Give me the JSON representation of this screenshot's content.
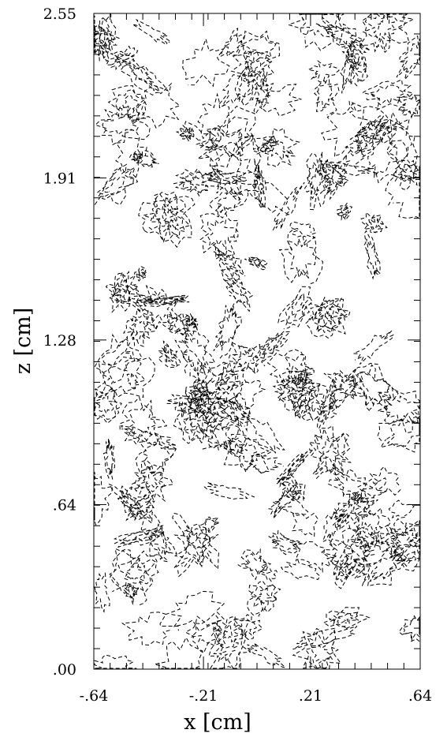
{
  "chart_data": {
    "type": "contour",
    "title": "",
    "xlabel": "x [cm]",
    "ylabel": "z [cm]",
    "xlim": [
      -0.64,
      0.64
    ],
    "ylim": [
      0.0,
      2.55
    ],
    "x_ticks": [
      {
        "value": -0.64,
        "label": "-.64"
      },
      {
        "value": -0.21,
        "label": "-.21"
      },
      {
        "value": 0.21,
        "label": ".21"
      },
      {
        "value": 0.64,
        "label": ".64"
      }
    ],
    "y_ticks": [
      {
        "value": 0.0,
        "label": ".00"
      },
      {
        "value": 0.64,
        "label": ".64"
      },
      {
        "value": 1.28,
        "label": "1.28"
      },
      {
        "value": 1.91,
        "label": "1.91"
      },
      {
        "value": 2.55,
        "label": "2.55"
      }
    ],
    "grid": false,
    "line_style": "dashed",
    "line_color": "#000000",
    "seed": 20240517
  }
}
